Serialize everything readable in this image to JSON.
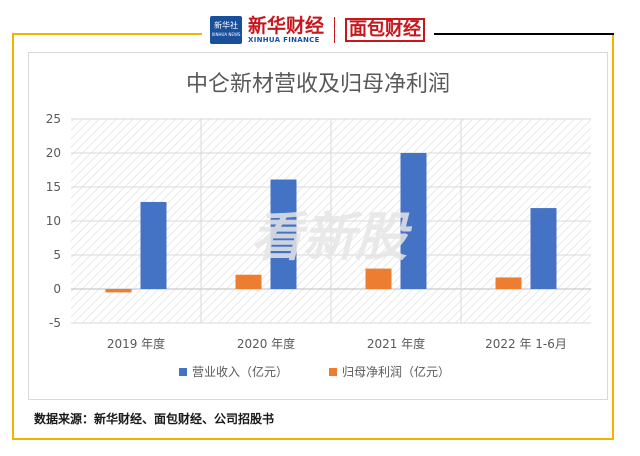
{
  "header": {
    "xinhua_badge_line1": "新华社",
    "xinhua_badge_line2": "XINHUA NEWS",
    "xinhua_cn": "新华财经",
    "xinhua_en": "XINHUA FINANCE",
    "mianbao_logo": "面包财经"
  },
  "watermark": "看新股",
  "source": "数据来源：新华财经、面包财经、公司招股书",
  "colors": {
    "revenue": "#4472c4",
    "net_profit": "#ed7d31",
    "frame": "#f2b400",
    "brand_red": "#c8161d"
  },
  "chart_data": {
    "type": "bar",
    "title": "中仑新材营收及归母净利润",
    "categories": [
      "2019 年度",
      "2020 年度",
      "2021 年度",
      "2022 年 1-6月"
    ],
    "series": [
      {
        "name": "归母净利润（亿元）",
        "values": [
          -0.5,
          2.1,
          3.0,
          1.7
        ],
        "color": "#ed7d31"
      },
      {
        "name": "营业收入（亿元）",
        "values": [
          12.8,
          16.1,
          20.0,
          11.9
        ],
        "color": "#4472c4"
      }
    ],
    "legend_order": [
      1,
      0
    ],
    "ylim": [
      -5,
      25
    ],
    "yticks": [
      -5,
      0,
      5,
      10,
      15,
      20,
      25
    ],
    "grid": true,
    "legend_position": "bottom"
  }
}
